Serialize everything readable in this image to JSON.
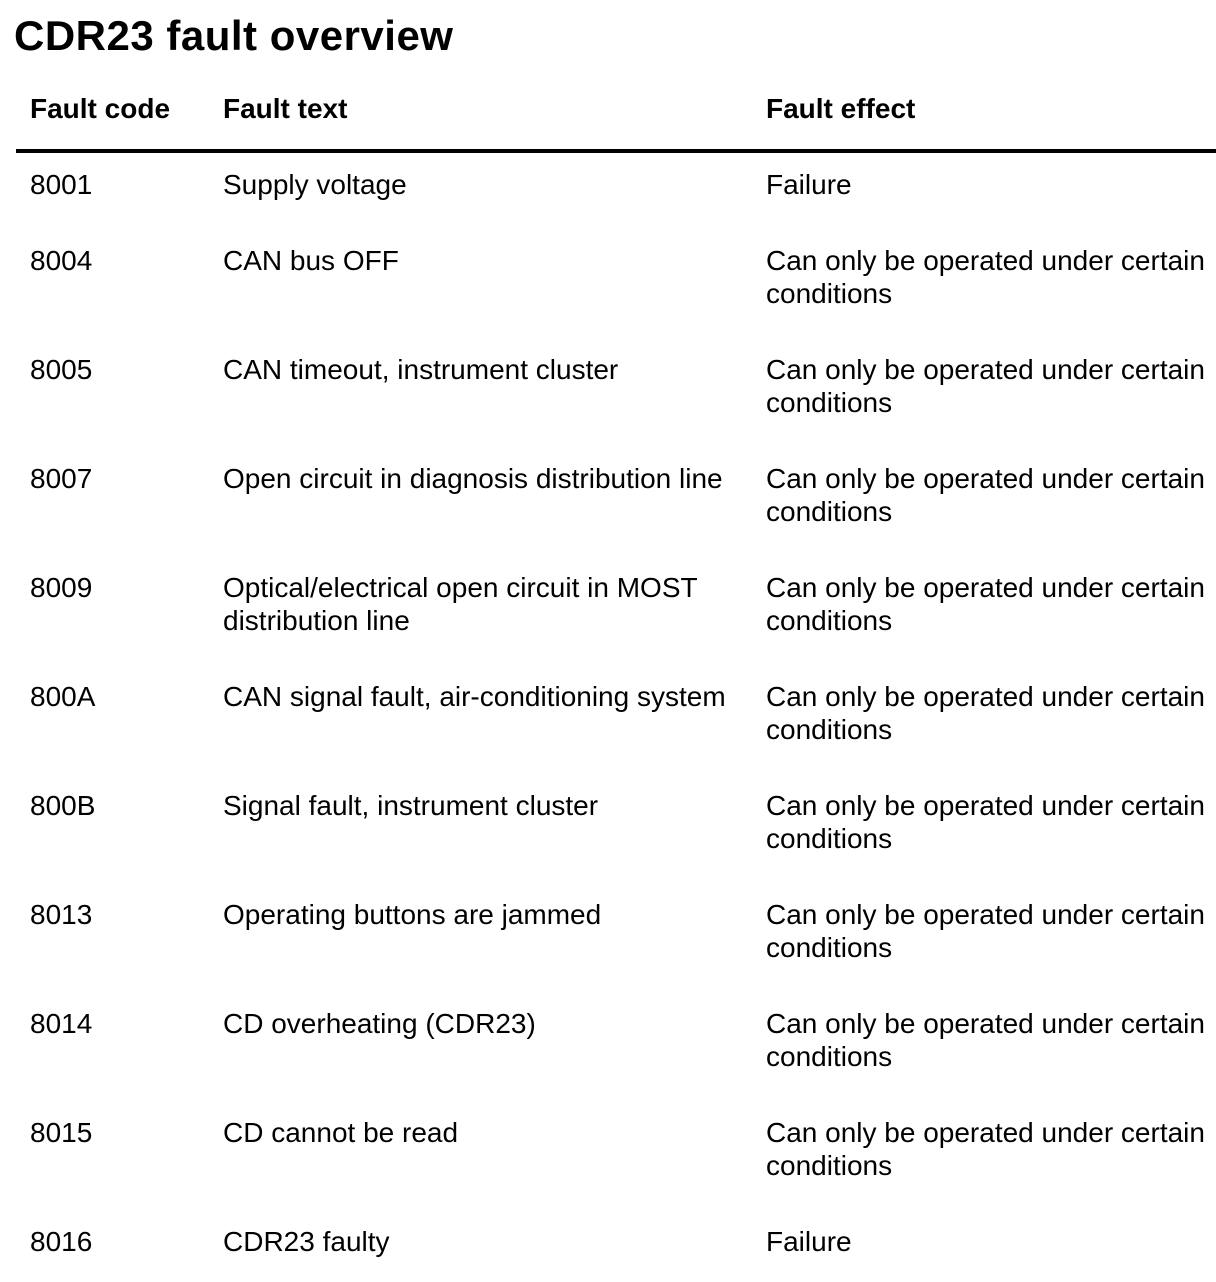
{
  "page": {
    "title": "CDR23 fault overview"
  },
  "colors": {
    "text": "#000000",
    "background": "#ffffff",
    "rule": "#000000"
  },
  "table": {
    "columns": [
      "Fault code",
      "Fault text",
      "Fault effect"
    ],
    "rows": [
      {
        "code": "8001",
        "text": "Supply voltage",
        "effect": "Failure"
      },
      {
        "code": "8004",
        "text": "CAN bus OFF",
        "effect": "Can only be operated under certain conditions"
      },
      {
        "code": "8005",
        "text": "CAN timeout, instrument cluster",
        "effect": "Can only be operated under certain conditions"
      },
      {
        "code": "8007",
        "text": "Open circuit in diagnosis distribution line",
        "effect": "Can only be operated under certain conditions"
      },
      {
        "code": "8009",
        "text": "Optical/electrical open circuit in MOST distribution line",
        "effect": "Can only be operated under certain conditions"
      },
      {
        "code": "800A",
        "text": "CAN signal fault, air-conditioning system",
        "effect": "Can only be operated under certain conditions"
      },
      {
        "code": "800B",
        "text": "Signal fault, instrument cluster",
        "effect": "Can only be operated under certain conditions"
      },
      {
        "code": "8013",
        "text": "Operating buttons are jammed",
        "effect": "Can only be operated under certain conditions"
      },
      {
        "code": "8014",
        "text": "CD overheating (CDR23)",
        "effect": "Can only be operated under certain conditions"
      },
      {
        "code": "8015",
        "text": "CD cannot be read",
        "effect": "Can only be operated under certain conditions"
      },
      {
        "code": "8016",
        "text": "CDR23 faulty",
        "effect": "Failure"
      }
    ]
  }
}
